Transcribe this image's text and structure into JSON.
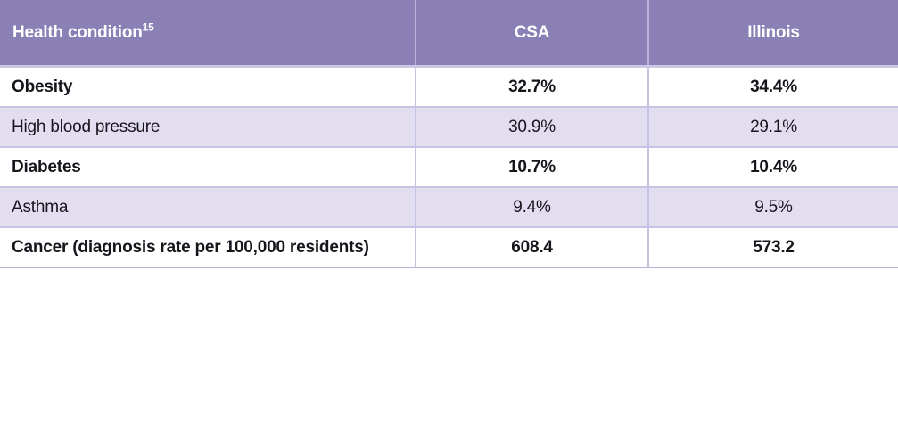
{
  "table": {
    "header": {
      "condition_label": "Health condition",
      "footnote_marker": "15",
      "csa_label": "CSA",
      "illinois_label": "Illinois"
    },
    "rows": [
      {
        "label": "Obesity",
        "csa": "32.7%",
        "illinois": "34.4%"
      },
      {
        "label": "High blood pressure",
        "csa": "30.9%",
        "illinois": "29.1%"
      },
      {
        "label": "Diabetes",
        "csa": "10.7%",
        "illinois": "10.4%"
      },
      {
        "label": "Asthma",
        "csa": "9.4%",
        "illinois": "9.5%"
      },
      {
        "label": "Cancer (diagnosis rate per 100,000 residents)",
        "csa": "608.4",
        "illinois": "573.2"
      }
    ],
    "colors": {
      "header_bg": "#8a80b5",
      "header_text": "#ffffff",
      "row_bg": "#ffffff",
      "row_alt_bg": "#e2def0",
      "border": "#c9c3e3",
      "bottom_border": "#bcb3da",
      "body_text": "#18141b"
    }
  },
  "chart_data": {
    "type": "table",
    "columns": [
      "Health condition",
      "CSA",
      "Illinois"
    ],
    "rows": [
      [
        "Obesity",
        "32.7%",
        "34.4%"
      ],
      [
        "High blood pressure",
        "30.9%",
        "29.1%"
      ],
      [
        "Diabetes",
        "10.7%",
        "10.4%"
      ],
      [
        "Asthma",
        "9.4%",
        "9.5%"
      ],
      [
        "Cancer (diagnosis rate per 100,000 residents)",
        "608.4",
        "573.2"
      ]
    ]
  }
}
